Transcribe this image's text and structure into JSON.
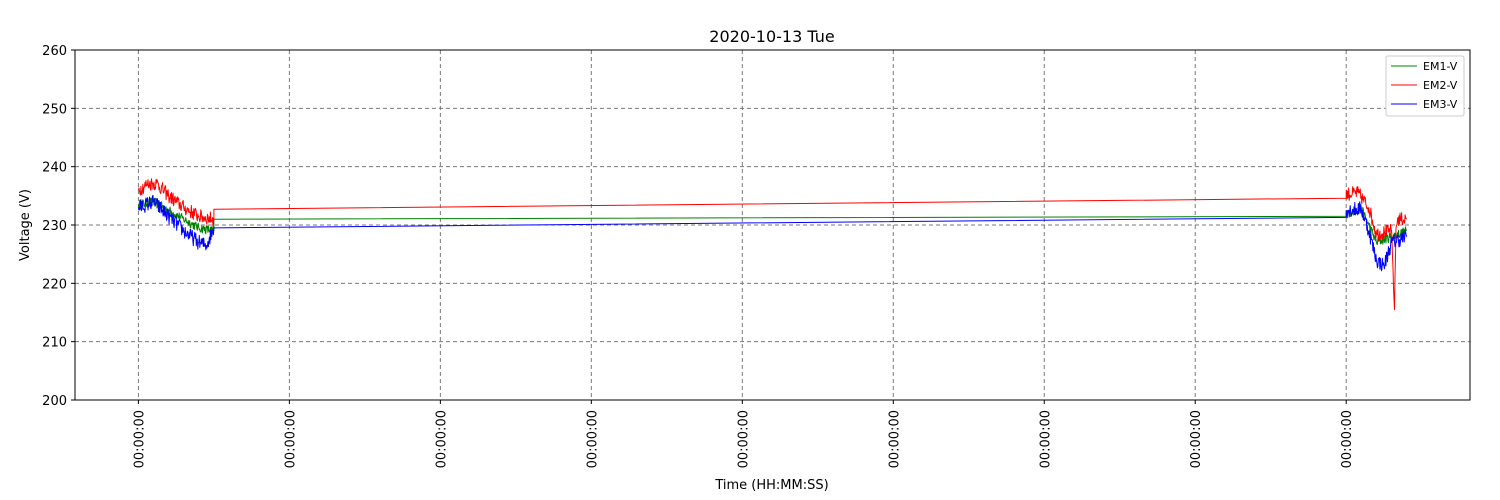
{
  "chart_data": {
    "type": "line",
    "title": "2020-10-13 Tue",
    "xlabel": "Time (HH:MM:SS)",
    "ylabel": "Voltage (V)",
    "ylim": [
      200,
      260
    ],
    "yticks": [
      200,
      210,
      220,
      230,
      240,
      250,
      260
    ],
    "xlim": [
      -0.42,
      8.82
    ],
    "xticks": [
      0,
      1,
      2,
      3,
      4,
      5,
      6,
      7,
      8
    ],
    "xtick_labels": [
      "00:00:00",
      "00:00:00",
      "00:00:00",
      "00:00:00",
      "00:00:00",
      "00:00:00",
      "00:00:00",
      "00:00:00",
      "00:00:00"
    ],
    "grid": true,
    "legend_position": "top-right",
    "series": [
      {
        "name": "EM1-V",
        "color": "#008000",
        "x": [
          0.0,
          0.1,
          0.2,
          0.3,
          0.4,
          0.5,
          0.5,
          8.0,
          8.0,
          8.1,
          8.15,
          8.2,
          8.3,
          8.4
        ],
        "y": [
          233.5,
          234.0,
          232.5,
          231.0,
          229.5,
          229.0,
          231.0,
          231.5,
          232.0,
          232.8,
          230.0,
          227.0,
          228.0,
          229.0
        ],
        "noise": 0.8
      },
      {
        "name": "EM2-V",
        "color": "#ff0000",
        "x": [
          0.0,
          0.06,
          0.12,
          0.2,
          0.3,
          0.4,
          0.5,
          0.5,
          8.0,
          8.0,
          8.08,
          8.15,
          8.2,
          8.3,
          8.32,
          8.33,
          8.34,
          8.4
        ],
        "y": [
          236.0,
          237.0,
          237.2,
          235.0,
          233.0,
          231.5,
          231.0,
          232.7,
          234.6,
          235.3,
          235.5,
          233.0,
          228.5,
          229.0,
          215.5,
          229.5,
          231.0,
          231.0
        ],
        "noise": 1.2
      },
      {
        "name": "EM3-V",
        "color": "#0000ff",
        "x": [
          0.0,
          0.1,
          0.2,
          0.3,
          0.4,
          0.45,
          0.5,
          0.5,
          8.0,
          8.0,
          8.1,
          8.15,
          8.2,
          8.25,
          8.3,
          8.4
        ],
        "y": [
          233.0,
          234.0,
          231.5,
          229.0,
          227.0,
          226.5,
          229.5,
          229.5,
          231.3,
          232.5,
          232.8,
          229.0,
          224.0,
          223.0,
          227.0,
          228.0
        ],
        "noise": 1.3
      }
    ]
  }
}
